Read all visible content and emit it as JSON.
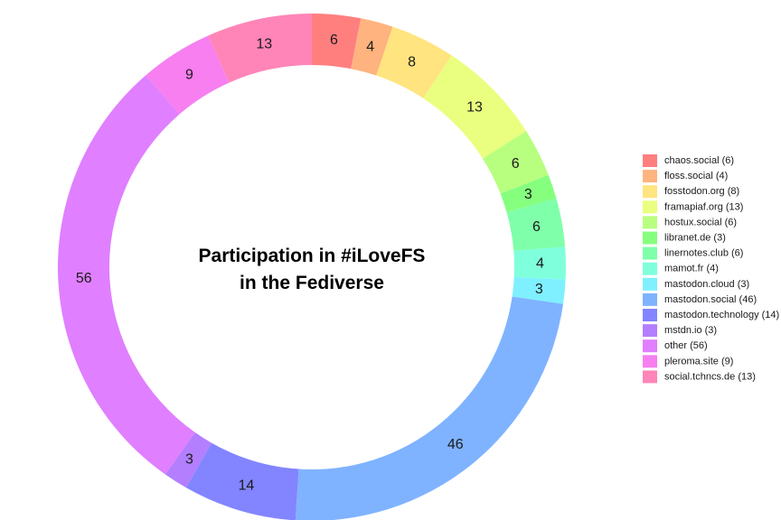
{
  "chart_data": {
    "type": "pie",
    "subtype": "donut",
    "title_lines": [
      "Participation in #iLoveFS",
      "in the Fediverse"
    ],
    "legend_position": "right",
    "slices": [
      {
        "label": "chaos.social",
        "legend": "chaos.social (6)",
        "value": 6,
        "color": "#ff7f7f"
      },
      {
        "label": "floss.social",
        "legend": "floss.social (4)",
        "value": 4,
        "color": "#ffb37f"
      },
      {
        "label": "fosstodon.org",
        "legend": "fosstodon.org (8)",
        "value": 8,
        "color": "#ffe47f"
      },
      {
        "label": "framapiaf.org",
        "legend": "framapiaf.org (13)",
        "value": 13,
        "color": "#eaff7f"
      },
      {
        "label": "hostux.social",
        "legend": "hostux.social (6)",
        "value": 6,
        "color": "#b8ff7f"
      },
      {
        "label": "libranet.de",
        "legend": "libranet.de (3)",
        "value": 3,
        "color": "#86ff7f"
      },
      {
        "label": "linernotes.club",
        "legend": "linernotes.club (6)",
        "value": 6,
        "color": "#7fffa9"
      },
      {
        "label": "mamot.fr",
        "legend": "mamot.fr (4)",
        "value": 4,
        "color": "#7fffdb"
      },
      {
        "label": "mastodon.cloud",
        "legend": "mastodon.cloud (3)",
        "value": 3,
        "color": "#7ff0ff"
      },
      {
        "label": "mastodon.social",
        "legend": "mastodon.social (46)",
        "value": 46,
        "color": "#7fb3ff"
      },
      {
        "label": "mastodon.technology",
        "legend": "mastodon.technology (14)",
        "value": 14,
        "color": "#8285ff"
      },
      {
        "label": "mstdn.io",
        "legend": "mstdn.io (3)",
        "value": 3,
        "color": "#b37fff"
      },
      {
        "label": "other",
        "legend": "other (56)",
        "value": 56,
        "color": "#e07fff"
      },
      {
        "label": "pleroma.site",
        "legend": "pleroma.site (9)",
        "value": 9,
        "color": "#f77ff0"
      },
      {
        "label": "social.tchncs.de",
        "legend": "social.tchncs.de (13)",
        "value": 13,
        "color": "#ff85b8"
      }
    ]
  }
}
